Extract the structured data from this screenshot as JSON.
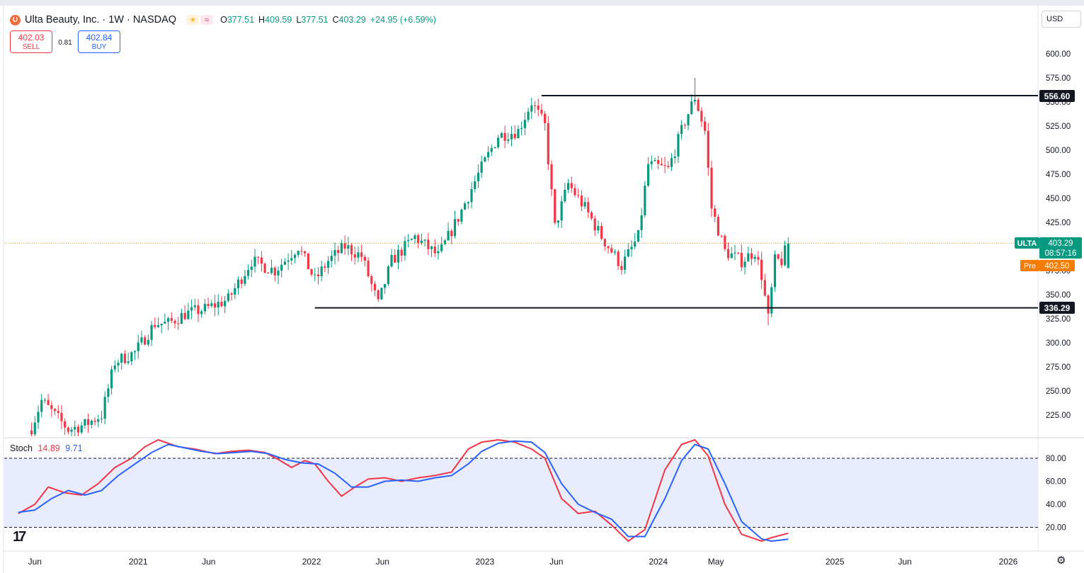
{
  "header": {
    "title": "Ulta Beauty, Inc. · 1W · NASDAQ",
    "logo_letter": "U",
    "ohlc": {
      "o_label": "O",
      "o": "377.51",
      "h_label": "H",
      "h": "409.59",
      "l_label": "L",
      "l": "377.51",
      "c_label": "C",
      "c": "403.29",
      "change": "+24.95 (+6.59%)"
    },
    "sell": {
      "price": "402.03",
      "label": "SELL"
    },
    "buy": {
      "price": "402.84",
      "label": "BUY"
    },
    "spread": "0.81",
    "currency": "USD"
  },
  "price_tags": {
    "resistance": "556.60",
    "support": "336.29",
    "symbol": "ULTA",
    "last": "403.29",
    "countdown": "08:57:16",
    "pre_label": "Pre",
    "pre": "402.50"
  },
  "stoch": {
    "label": "Stoch",
    "k": "14.89",
    "d": "9.71"
  },
  "colors": {
    "up": "#089981",
    "down": "#f23645",
    "k_line": "#f23645",
    "d_line": "#2962ff",
    "band": "#e8ecfd",
    "pre": "#f57c00"
  },
  "chart_data": [
    {
      "type": "candlestick",
      "title": "Ulta Beauty, Inc. · 1W · NASDAQ",
      "ylim": [
        195,
        620
      ],
      "y_ticks": [
        225,
        250,
        275,
        300,
        325,
        350,
        375,
        400,
        425,
        450,
        475,
        500,
        525,
        550,
        575,
        600
      ],
      "x_ticks": [
        "Jun",
        "2021",
        "Jun",
        "2022",
        "Jun",
        "2023",
        "Jun",
        "2024",
        "May",
        "2025",
        "Jun",
        "2026"
      ],
      "close_path": [
        [
          "2020-05-25",
          212
        ],
        [
          "2020-06-15",
          240
        ],
        [
          "2020-07-13",
          225
        ],
        [
          "2020-08-10",
          210
        ],
        [
          "2020-09-14",
          215
        ],
        [
          "2020-10-19",
          225
        ],
        [
          "2020-11-16",
          280
        ],
        [
          "2020-12-28",
          290
        ],
        [
          "2021-02-08",
          320
        ],
        [
          "2021-03-08",
          320
        ],
        [
          "2021-04-12",
          330
        ],
        [
          "2021-05-24",
          335
        ],
        [
          "2021-07-12",
          345
        ],
        [
          "2021-08-30",
          385
        ],
        [
          "2021-10-18",
          375
        ],
        [
          "2021-12-06",
          400
        ],
        [
          "2022-01-10",
          365
        ],
        [
          "2022-02-07",
          385
        ],
        [
          "2022-03-14",
          400
        ],
        [
          "2022-04-18",
          390
        ],
        [
          "2022-05-23",
          340
        ],
        [
          "2022-06-20",
          385
        ],
        [
          "2022-08-08",
          410
        ],
        [
          "2022-09-26",
          390
        ],
        [
          "2022-11-07",
          430
        ],
        [
          "2022-12-19",
          475
        ],
        [
          "2023-01-30",
          515
        ],
        [
          "2023-03-13",
          520
        ],
        [
          "2023-04-10",
          550
        ],
        [
          "2023-05-08",
          525
        ],
        [
          "2023-05-29",
          420
        ],
        [
          "2023-06-26",
          465
        ],
        [
          "2023-07-31",
          440
        ],
        [
          "2023-09-04",
          410
        ],
        [
          "2023-10-16",
          380
        ],
        [
          "2023-11-20",
          410
        ],
        [
          "2023-12-11",
          485
        ],
        [
          "2024-01-22",
          480
        ],
        [
          "2024-02-26",
          530
        ],
        [
          "2024-03-18",
          555
        ],
        [
          "2024-04-08",
          520
        ],
        [
          "2024-04-22",
          440
        ],
        [
          "2024-05-20",
          395
        ],
        [
          "2024-06-24",
          385
        ],
        [
          "2024-07-22",
          395
        ],
        [
          "2024-08-05",
          370
        ],
        [
          "2024-08-19",
          325
        ],
        [
          "2024-09-02",
          385
        ],
        [
          "2024-09-16",
          385
        ],
        [
          "2024-09-30",
          403.29
        ]
      ],
      "last_candle": {
        "open": 377.51,
        "high": 409.59,
        "low": 377.51,
        "close": 403.29
      },
      "notable_extremes": {
        "high": 575,
        "low": 318
      },
      "horizontal_levels": [
        {
          "label": "556.60",
          "value": 556.6,
          "from": "2023-05-01",
          "to": "right-edge"
        },
        {
          "label": "336.29",
          "value": 336.29,
          "from": "2022-01-10",
          "to": "right-edge"
        }
      ],
      "current_price_line": 403.29,
      "legend": "top-left"
    },
    {
      "type": "line",
      "title": "Stoch",
      "ylim": [
        0,
        100
      ],
      "y_ticks": [
        20,
        40,
        60,
        80
      ],
      "band": [
        20,
        80
      ],
      "series": [
        {
          "name": "%K",
          "value": 14.89,
          "points": [
            [
              "2020-04-27",
              32
            ],
            [
              "2020-06-01",
              40
            ],
            [
              "2020-06-29",
              55
            ],
            [
              "2020-08-03",
              50
            ],
            [
              "2020-09-07",
              48
            ],
            [
              "2020-10-12",
              58
            ],
            [
              "2020-11-16",
              72
            ],
            [
              "2020-12-21",
              80
            ],
            [
              "2021-01-18",
              90
            ],
            [
              "2021-02-15",
              96
            ],
            [
              "2021-03-29",
              90
            ],
            [
              "2021-05-03",
              88
            ],
            [
              "2021-06-14",
              84
            ],
            [
              "2021-07-19",
              86
            ],
            [
              "2021-08-23",
              87
            ],
            [
              "2021-09-27",
              85
            ],
            [
              "2021-10-25",
              79
            ],
            [
              "2021-11-22",
              72
            ],
            [
              "2021-12-20",
              78
            ],
            [
              "2022-01-10",
              75
            ],
            [
              "2022-02-07",
              60
            ],
            [
              "2022-03-07",
              47
            ],
            [
              "2022-04-04",
              55
            ],
            [
              "2022-05-02",
              62
            ],
            [
              "2022-06-06",
              63
            ],
            [
              "2022-07-11",
              60
            ],
            [
              "2022-08-15",
              63
            ],
            [
              "2022-09-19",
              65
            ],
            [
              "2022-10-24",
              68
            ],
            [
              "2022-11-28",
              88
            ],
            [
              "2022-12-26",
              94
            ],
            [
              "2023-01-30",
              96
            ],
            [
              "2023-03-06",
              94
            ],
            [
              "2023-04-10",
              88
            ],
            [
              "2023-05-08",
              80
            ],
            [
              "2023-06-12",
              45
            ],
            [
              "2023-07-17",
              32
            ],
            [
              "2023-08-21",
              34
            ],
            [
              "2023-09-25",
              22
            ],
            [
              "2023-10-30",
              8
            ],
            [
              "2023-12-04",
              18
            ],
            [
              "2024-01-15",
              70
            ],
            [
              "2024-02-19",
              92
            ],
            [
              "2024-03-18",
              96
            ],
            [
              "2024-04-15",
              82
            ],
            [
              "2024-05-20",
              40
            ],
            [
              "2024-06-24",
              14
            ],
            [
              "2024-08-05",
              8
            ],
            [
              "2024-08-26",
              11
            ],
            [
              "2024-09-30",
              14.89
            ]
          ]
        },
        {
          "name": "%D",
          "value": 9.71,
          "points": [
            [
              "2020-04-27",
              33
            ],
            [
              "2020-06-01",
              35
            ],
            [
              "2020-07-06",
              45
            ],
            [
              "2020-08-10",
              52
            ],
            [
              "2020-09-14",
              48
            ],
            [
              "2020-10-19",
              52
            ],
            [
              "2020-11-23",
              65
            ],
            [
              "2020-12-28",
              75
            ],
            [
              "2021-02-01",
              85
            ],
            [
              "2021-03-08",
              92
            ],
            [
              "2021-04-12",
              89
            ],
            [
              "2021-05-17",
              86
            ],
            [
              "2021-06-21",
              84
            ],
            [
              "2021-07-26",
              85
            ],
            [
              "2021-08-30",
              86
            ],
            [
              "2021-10-04",
              84
            ],
            [
              "2021-11-08",
              79
            ],
            [
              "2021-12-13",
              76
            ],
            [
              "2022-01-17",
              75
            ],
            [
              "2022-02-21",
              67
            ],
            [
              "2022-03-28",
              55
            ],
            [
              "2022-05-02",
              55
            ],
            [
              "2022-06-06",
              60
            ],
            [
              "2022-07-11",
              61
            ],
            [
              "2022-08-15",
              60
            ],
            [
              "2022-09-19",
              63
            ],
            [
              "2022-10-24",
              65
            ],
            [
              "2022-11-28",
              75
            ],
            [
              "2022-12-26",
              86
            ],
            [
              "2023-01-30",
              93
            ],
            [
              "2023-03-06",
              95
            ],
            [
              "2023-04-10",
              94
            ],
            [
              "2023-05-08",
              85
            ],
            [
              "2023-06-12",
              58
            ],
            [
              "2023-07-17",
              40
            ],
            [
              "2023-08-21",
              33
            ],
            [
              "2023-09-25",
              27
            ],
            [
              "2023-10-30",
              12
            ],
            [
              "2023-12-04",
              12
            ],
            [
              "2024-01-15",
              45
            ],
            [
              "2024-02-19",
              78
            ],
            [
              "2024-03-18",
              92
            ],
            [
              "2024-04-15",
              88
            ],
            [
              "2024-05-20",
              58
            ],
            [
              "2024-06-24",
              25
            ],
            [
              "2024-08-05",
              10
            ],
            [
              "2024-08-26",
              8
            ],
            [
              "2024-09-30",
              9.71
            ]
          ]
        }
      ]
    }
  ]
}
